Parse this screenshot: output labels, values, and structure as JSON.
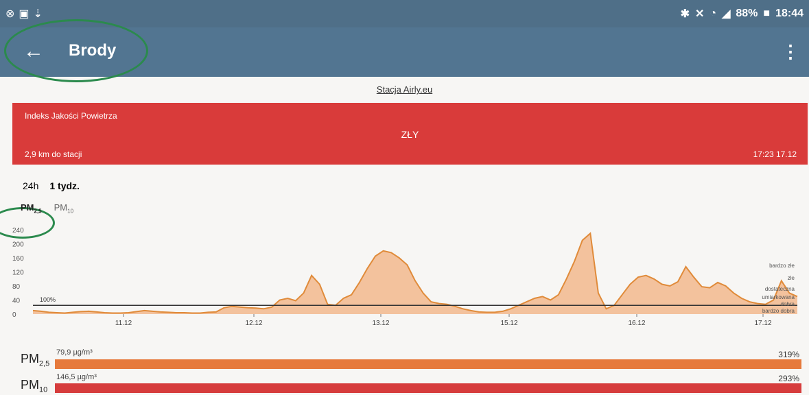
{
  "status_bar": {
    "left_icons": [
      "camera-icon",
      "image-icon",
      "download-icon"
    ],
    "right_icons": [
      "bluetooth-icon",
      "vibrate-icon",
      "wifi-icon",
      "signal-icon"
    ],
    "battery": "88%",
    "time": "18:44"
  },
  "app_bar": {
    "title": "Brody",
    "back_icon": "arrow-left-icon",
    "menu_icon": "more-vert-icon"
  },
  "station_link": "Stacja Airly.eu",
  "aqi": {
    "label": "Indeks Jakości Powietrza",
    "status": "ZŁY",
    "distance": "2,9 km do stacji",
    "updated": "17:23 17.12",
    "color": "#d93b3a"
  },
  "range_tabs": {
    "day": "24h",
    "week": "1 tydz."
  },
  "pollutant_tabs": {
    "pm25": "PM",
    "pm25_sub": "2,5",
    "pm10": "PM",
    "pm10_sub": "10"
  },
  "chart_data": {
    "type": "area",
    "series": [
      {
        "values": [
          10,
          8,
          5,
          4,
          3,
          5,
          7,
          8,
          6,
          4,
          3,
          3,
          4,
          7,
          10,
          8,
          6,
          5,
          4,
          4,
          3,
          3,
          5,
          6,
          18,
          22,
          20,
          18,
          17,
          15,
          20,
          40,
          45,
          38,
          60,
          110,
          85,
          28,
          25,
          45,
          55,
          90,
          130,
          165,
          180,
          175,
          160,
          140,
          95,
          60,
          35,
          30,
          28,
          22,
          15,
          10,
          6,
          5,
          5,
          8,
          15,
          25,
          35,
          45,
          50,
          40,
          55,
          100,
          150,
          210,
          230,
          60,
          15,
          25,
          55,
          85,
          105,
          110,
          100,
          85,
          80,
          92,
          135,
          105,
          78,
          75,
          90,
          80,
          60,
          45,
          35,
          30,
          28,
          40,
          95,
          60,
          50
        ]
      }
    ],
    "x_ticks": [
      "11.12",
      "12.12",
      "13.12",
      "15.12",
      "16.12",
      "17.12"
    ],
    "y_ticks": [
      "0",
      "40",
      "80",
      "120",
      "160",
      "200",
      "240"
    ],
    "ylim": [
      0,
      250
    ],
    "norm_line": {
      "label": "100%",
      "value": 25
    },
    "levels": [
      "bardzo złe",
      "złe",
      "dostateczna",
      "umiarkowana",
      "dobra",
      "bardzo dobra"
    ],
    "fill_color": "#f1b587",
    "line_color": "#e08b3a"
  },
  "pm_bars": [
    {
      "name": "PM",
      "sub": "2,5",
      "value": "79,9 µg/m³",
      "percent": "319%",
      "color": "#e67a3c"
    },
    {
      "name": "PM",
      "sub": "10",
      "value": "146,5 µg/m³",
      "percent": "293%",
      "color": "#d63c3c"
    }
  ]
}
